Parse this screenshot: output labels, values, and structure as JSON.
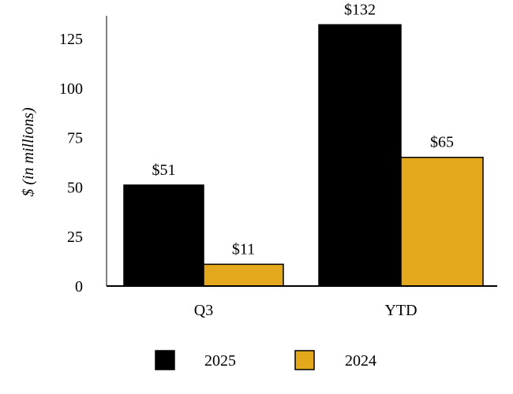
{
  "chart_data": {
    "type": "bar",
    "title": "",
    "xlabel": "",
    "ylabel": "$ (in millions)",
    "categories": [
      "Q3",
      "YTD"
    ],
    "series": [
      {
        "name": "2025",
        "values": [
          51,
          132
        ],
        "labels": [
          "$51",
          "$132"
        ],
        "color": "#000000"
      },
      {
        "name": "2024",
        "values": [
          11,
          65
        ],
        "labels": [
          "$11",
          "$65"
        ],
        "color": "#E3A81B"
      }
    ],
    "ylim": [
      0,
      140
    ],
    "yticks": [
      0,
      25,
      50,
      75,
      100,
      125
    ],
    "grid": false,
    "legend": "bottom"
  }
}
